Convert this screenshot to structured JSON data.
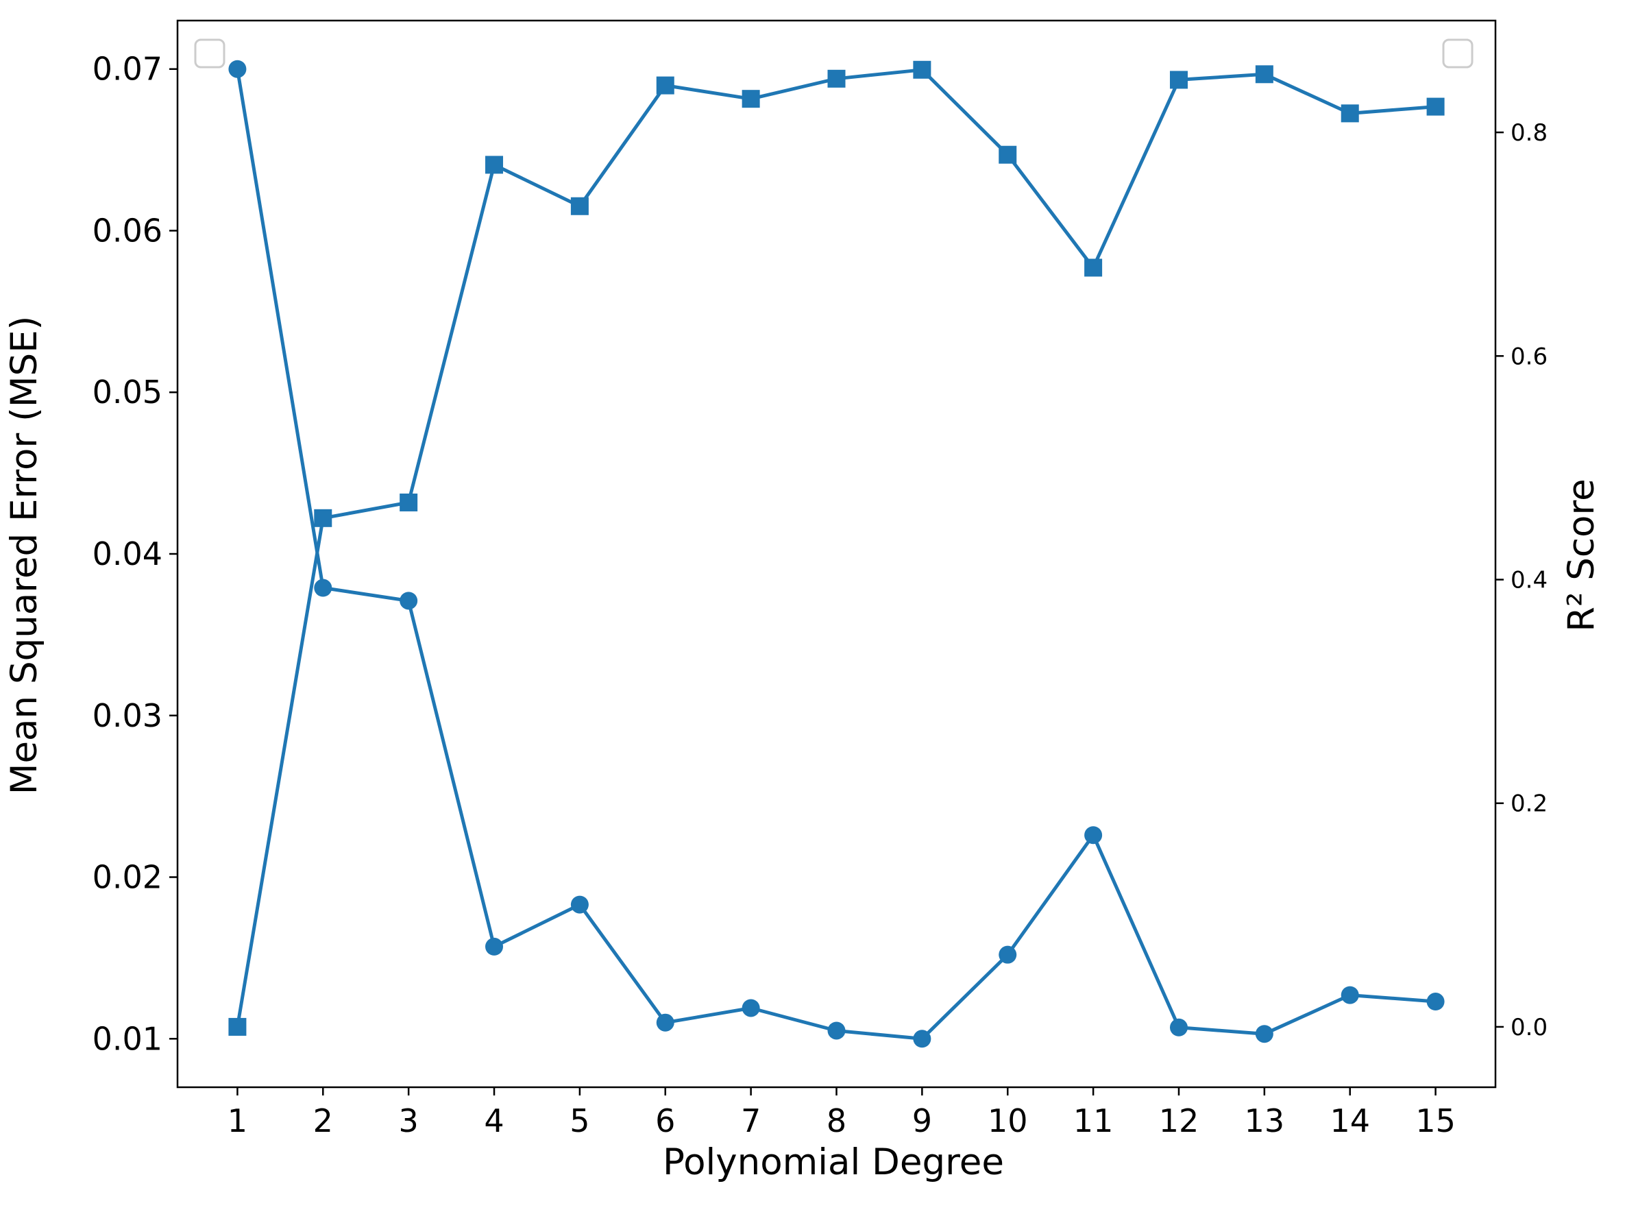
{
  "chart_data": {
    "type": "line",
    "title": "",
    "xlabel": "Polynomial Degree",
    "ylabel": "Mean Squared Error (MSE)",
    "y2label": "R² Score",
    "x": [
      1,
      2,
      3,
      4,
      5,
      6,
      7,
      8,
      9,
      10,
      11,
      12,
      13,
      14,
      15
    ],
    "x_tick_labels": [
      "1",
      "2",
      "3",
      "4",
      "5",
      "6",
      "7",
      "8",
      "9",
      "10",
      "11",
      "12",
      "13",
      "14",
      "15"
    ],
    "xlim": [
      0.3,
      15.7
    ],
    "ylim": [
      0.007,
      0.073
    ],
    "y2lim": [
      -0.054,
      0.9
    ],
    "y_tick_labels": [
      "0.01",
      "0.02",
      "0.03",
      "0.04",
      "0.05",
      "0.06",
      "0.07"
    ],
    "y2_tick_labels": [
      "0.0",
      "0.2",
      "0.4",
      "0.6",
      "0.8"
    ],
    "series": [
      {
        "axis": "left",
        "marker": "circle",
        "values": [
          0.07,
          0.0379,
          0.0371,
          0.0157,
          0.0183,
          0.011,
          0.0119,
          0.0105,
          0.01,
          0.0152,
          0.0226,
          0.0107,
          0.0103,
          0.0127,
          0.0123
        ]
      },
      {
        "axis": "right",
        "marker": "square",
        "values": [
          0.0,
          0.455,
          0.469,
          0.771,
          0.734,
          0.842,
          0.83,
          0.848,
          0.856,
          0.78,
          0.679,
          0.847,
          0.852,
          0.817,
          0.823
        ]
      }
    ],
    "series_color": "#1f77b4",
    "grid": false,
    "legend": "empty boxes at top-left and top-right"
  }
}
